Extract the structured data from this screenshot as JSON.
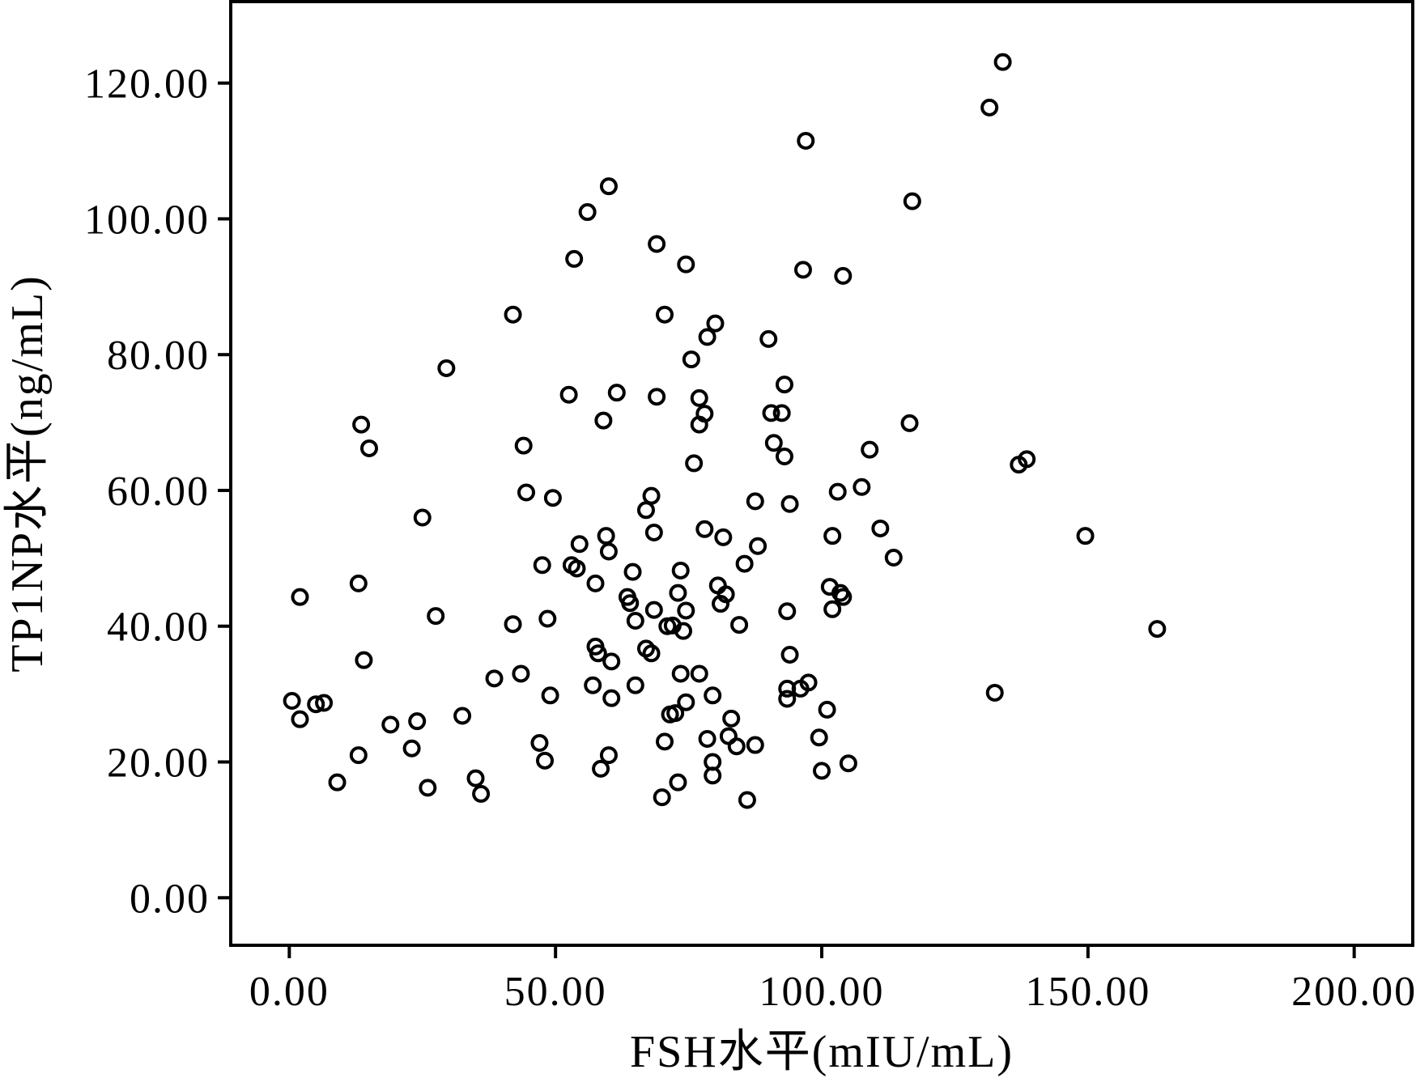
{
  "chart_data": {
    "type": "scatter",
    "xlabel": "FSH水平(mIU/mL)",
    "ylabel": "TP1NP水平(ng/mL)",
    "xlim": [
      -11,
      211
    ],
    "ylim": [
      -7,
      132
    ],
    "x_ticks": [
      0,
      50,
      100,
      150,
      200
    ],
    "x_tick_labels": [
      "0.00",
      "50.00",
      "100.00",
      "150.00",
      "200.00"
    ],
    "y_ticks": [
      0,
      20,
      40,
      60,
      80,
      100,
      120
    ],
    "y_tick_labels": [
      "0.00",
      "20.00",
      "40.00",
      "60.00",
      "80.00",
      "100.00",
      "120.00"
    ],
    "grid": false,
    "marker": "open-circle",
    "points": [
      [
        0.5,
        29
      ],
      [
        2,
        26.3
      ],
      [
        2,
        44.3
      ],
      [
        5,
        28.5
      ],
      [
        6.5,
        28.7
      ],
      [
        9,
        17
      ],
      [
        13,
        21
      ],
      [
        13,
        46.3
      ],
      [
        13.5,
        69.7
      ],
      [
        14,
        35
      ],
      [
        15,
        66.2
      ],
      [
        19,
        25.5
      ],
      [
        23,
        22
      ],
      [
        24,
        26
      ],
      [
        25,
        56
      ],
      [
        26,
        16.2
      ],
      [
        27.5,
        41.5
      ],
      [
        29.5,
        78
      ],
      [
        32.5,
        26.8
      ],
      [
        35,
        17.6
      ],
      [
        36,
        15.3
      ],
      [
        38.5,
        32.3
      ],
      [
        42,
        40.3
      ],
      [
        42,
        85.9
      ],
      [
        43.5,
        33
      ],
      [
        44,
        66.6
      ],
      [
        44.5,
        59.7
      ],
      [
        47,
        22.8
      ],
      [
        47.5,
        49
      ],
      [
        48,
        20.2
      ],
      [
        48.5,
        41.1
      ],
      [
        49,
        29.8
      ],
      [
        49.5,
        58.9
      ],
      [
        52.5,
        74.1
      ],
      [
        53,
        49
      ],
      [
        53.5,
        94.1
      ],
      [
        54,
        48.5
      ],
      [
        54.5,
        52.1
      ],
      [
        56,
        101
      ],
      [
        57,
        31.3
      ],
      [
        57.5,
        37
      ],
      [
        57.5,
        46.3
      ],
      [
        58,
        36
      ],
      [
        58.5,
        19
      ],
      [
        59,
        70.3
      ],
      [
        59.5,
        53.3
      ],
      [
        60,
        51
      ],
      [
        60,
        21
      ],
      [
        60,
        104.8
      ],
      [
        60.5,
        29.4
      ],
      [
        60.5,
        34.8
      ],
      [
        61.5,
        74.4
      ],
      [
        63.5,
        44.3
      ],
      [
        64,
        43.4
      ],
      [
        64.5,
        48
      ],
      [
        65,
        31.3
      ],
      [
        65,
        40.8
      ],
      [
        67,
        36.7
      ],
      [
        67,
        57.1
      ],
      [
        68,
        36
      ],
      [
        68,
        59.2
      ],
      [
        68.5,
        53.8
      ],
      [
        68.5,
        42.4
      ],
      [
        69,
        96.3
      ],
      [
        69,
        73.8
      ],
      [
        70,
        14.8
      ],
      [
        70.5,
        23
      ],
      [
        70.5,
        85.9
      ],
      [
        71,
        40
      ],
      [
        71.5,
        27
      ],
      [
        72,
        40.1
      ],
      [
        72.5,
        27.2
      ],
      [
        73,
        44.9
      ],
      [
        73,
        17
      ],
      [
        73.5,
        48.2
      ],
      [
        73.5,
        33
      ],
      [
        74,
        39.3
      ],
      [
        74.5,
        93.3
      ],
      [
        74.5,
        42.3
      ],
      [
        74.5,
        28.8
      ],
      [
        75.5,
        79.3
      ],
      [
        76,
        64
      ],
      [
        77,
        73.6
      ],
      [
        77,
        69.7
      ],
      [
        77,
        33
      ],
      [
        78,
        54.3
      ],
      [
        78,
        71.3
      ],
      [
        78.5,
        82.6
      ],
      [
        78.5,
        23.4
      ],
      [
        79.5,
        20
      ],
      [
        79.5,
        18
      ],
      [
        79.5,
        29.8
      ],
      [
        80,
        84.6
      ],
      [
        80.5,
        46
      ],
      [
        81,
        43.3
      ],
      [
        81.5,
        53.1
      ],
      [
        82,
        44.7
      ],
      [
        82.5,
        23.8
      ],
      [
        83,
        26.4
      ],
      [
        84,
        22.3
      ],
      [
        84.5,
        40.2
      ],
      [
        85.5,
        49.2
      ],
      [
        86,
        14.4
      ],
      [
        87.5,
        58.4
      ],
      [
        87.5,
        22.5
      ],
      [
        88,
        51.8
      ],
      [
        90,
        82.3
      ],
      [
        90.5,
        71.4
      ],
      [
        91,
        67
      ],
      [
        92.5,
        71.4
      ],
      [
        93,
        65
      ],
      [
        93,
        75.6
      ],
      [
        93.5,
        29.3
      ],
      [
        93.5,
        30.8
      ],
      [
        93.5,
        42.2
      ],
      [
        94,
        35.8
      ],
      [
        94,
        58
      ],
      [
        96,
        30.8
      ],
      [
        96.5,
        92.5
      ],
      [
        97,
        111.5
      ],
      [
        97.5,
        31.7
      ],
      [
        99.5,
        23.6
      ],
      [
        100,
        18.7
      ],
      [
        101,
        27.7
      ],
      [
        101.5,
        45.8
      ],
      [
        102,
        53.3
      ],
      [
        102,
        42.5
      ],
      [
        103,
        59.8
      ],
      [
        103.5,
        44.9
      ],
      [
        104,
        44.3
      ],
      [
        104,
        91.6
      ],
      [
        105,
        19.8
      ],
      [
        107.5,
        60.5
      ],
      [
        109,
        66
      ],
      [
        111,
        54.4
      ],
      [
        113.5,
        50.1
      ],
      [
        116.5,
        69.9
      ],
      [
        117,
        102.6
      ],
      [
        131.5,
        116.4
      ],
      [
        132.5,
        30.2
      ],
      [
        134,
        123.1
      ],
      [
        137,
        63.8
      ],
      [
        138.5,
        64.6
      ],
      [
        149.5,
        53.3
      ],
      [
        163,
        39.6
      ]
    ]
  }
}
